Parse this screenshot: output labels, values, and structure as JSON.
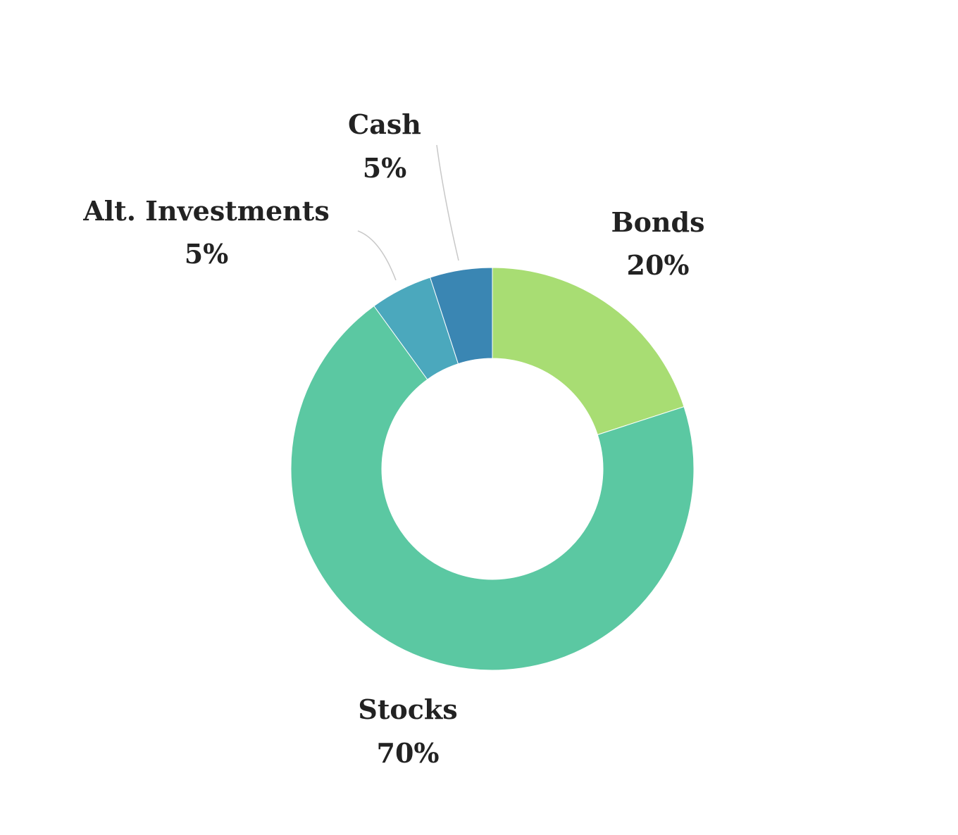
{
  "chart_data": {
    "type": "pie",
    "donut": true,
    "categories": [
      "Bonds",
      "Stocks",
      "Alt. Investments",
      "Cash"
    ],
    "values": [
      20,
      70,
      5,
      5
    ],
    "labels": [
      "20%",
      "70%",
      "5%",
      "5%"
    ],
    "colors": [
      "#a8dd73",
      "#5bc8a2",
      "#4ba8bd",
      "#3a86b3"
    ],
    "start_angle": "12 o'clock",
    "direction": "clockwise",
    "legend": "none"
  }
}
